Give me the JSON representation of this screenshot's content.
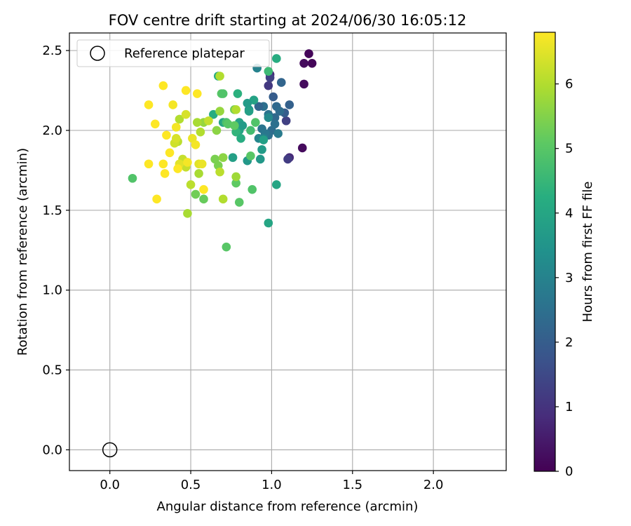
{
  "chart_data": {
    "type": "scatter",
    "title": "FOV centre drift starting at 2024/06/30 16:05:12",
    "xlabel": "Angular distance from reference (arcmin)",
    "ylabel": "Rotation from reference (arcmin)",
    "xlim": [
      -0.25,
      2.45
    ],
    "ylim": [
      -0.13,
      2.61
    ],
    "xticks": [
      "0.0",
      "0.5",
      "1.0",
      "1.5",
      "2.0"
    ],
    "yticks": [
      "0.0",
      "0.5",
      "1.0",
      "1.5",
      "2.0",
      "2.5"
    ],
    "grid": true,
    "legend": {
      "placement": "top-left",
      "entries": [
        "Reference platepar"
      ]
    },
    "reference_point": {
      "x": 0.0,
      "y": 0.0,
      "marker": "open-circle"
    },
    "colorbar": {
      "label": "Hours from first FF file",
      "range": [
        0,
        6.8
      ],
      "ticks": [
        "0",
        "1",
        "2",
        "3",
        "4",
        "5",
        "6"
      ],
      "colormap": "viridis"
    },
    "points": [
      {
        "x": 1.23,
        "y": 2.48,
        "h": 0.1
      },
      {
        "x": 1.25,
        "y": 2.42,
        "h": 0.1
      },
      {
        "x": 1.2,
        "y": 2.42,
        "h": 0.2
      },
      {
        "x": 1.2,
        "y": 2.29,
        "h": 0.2
      },
      {
        "x": 1.19,
        "y": 1.89,
        "h": 0.2
      },
      {
        "x": 1.11,
        "y": 1.83,
        "h": 0.8
      },
      {
        "x": 1.1,
        "y": 1.82,
        "h": 1.2
      },
      {
        "x": 0.99,
        "y": 2.35,
        "h": 0.8
      },
      {
        "x": 0.98,
        "y": 2.28,
        "h": 1.1
      },
      {
        "x": 0.99,
        "y": 2.33,
        "h": 1.3
      },
      {
        "x": 1.09,
        "y": 2.06,
        "h": 1.3
      },
      {
        "x": 1.01,
        "y": 2.21,
        "h": 2.0
      },
      {
        "x": 1.06,
        "y": 2.3,
        "h": 2.2
      },
      {
        "x": 1.11,
        "y": 2.16,
        "h": 2.1
      },
      {
        "x": 1.08,
        "y": 2.11,
        "h": 2.0
      },
      {
        "x": 1.03,
        "y": 2.15,
        "h": 2.3
      },
      {
        "x": 1.05,
        "y": 2.12,
        "h": 2.4
      },
      {
        "x": 1.02,
        "y": 2.08,
        "h": 2.3
      },
      {
        "x": 0.98,
        "y": 2.1,
        "h": 2.6
      },
      {
        "x": 0.95,
        "y": 2.15,
        "h": 2.5
      },
      {
        "x": 0.92,
        "y": 2.15,
        "h": 2.2
      },
      {
        "x": 1.0,
        "y": 2.0,
        "h": 2.4
      },
      {
        "x": 0.98,
        "y": 1.97,
        "h": 2.5
      },
      {
        "x": 1.04,
        "y": 1.98,
        "h": 2.8
      },
      {
        "x": 0.94,
        "y": 2.01,
        "h": 2.6
      },
      {
        "x": 0.96,
        "y": 1.98,
        "h": 2.7
      },
      {
        "x": 1.02,
        "y": 2.04,
        "h": 2.5
      },
      {
        "x": 0.95,
        "y": 1.95,
        "h": 3.0
      },
      {
        "x": 0.92,
        "y": 1.95,
        "h": 3.1
      },
      {
        "x": 0.91,
        "y": 2.39,
        "h": 3.0
      },
      {
        "x": 0.98,
        "y": 2.08,
        "h": 3.2
      },
      {
        "x": 0.94,
        "y": 1.88,
        "h": 3.7
      },
      {
        "x": 0.95,
        "y": 1.94,
        "h": 3.8
      },
      {
        "x": 0.93,
        "y": 1.82,
        "h": 3.6
      },
      {
        "x": 0.86,
        "y": 2.13,
        "h": 3.4
      },
      {
        "x": 0.85,
        "y": 1.81,
        "h": 3.6
      },
      {
        "x": 0.89,
        "y": 2.19,
        "h": 3.9
      },
      {
        "x": 0.85,
        "y": 2.17,
        "h": 3.7
      },
      {
        "x": 0.86,
        "y": 2.12,
        "h": 3.8
      },
      {
        "x": 0.8,
        "y": 2.05,
        "h": 3.9
      },
      {
        "x": 0.8,
        "y": 2.0,
        "h": 4.0
      },
      {
        "x": 0.82,
        "y": 2.03,
        "h": 3.7
      },
      {
        "x": 0.78,
        "y": 1.99,
        "h": 4.4
      },
      {
        "x": 0.76,
        "y": 1.83,
        "h": 3.8
      },
      {
        "x": 0.7,
        "y": 2.05,
        "h": 4.0
      },
      {
        "x": 0.64,
        "y": 2.1,
        "h": 4.2
      },
      {
        "x": 0.67,
        "y": 2.34,
        "h": 4.1
      },
      {
        "x": 0.79,
        "y": 2.23,
        "h": 4.3
      },
      {
        "x": 0.81,
        "y": 1.95,
        "h": 4.2
      },
      {
        "x": 0.87,
        "y": 2.0,
        "h": 4.7
      },
      {
        "x": 0.9,
        "y": 2.05,
        "h": 4.9
      },
      {
        "x": 0.98,
        "y": 2.37,
        "h": 4.6
      },
      {
        "x": 1.03,
        "y": 2.45,
        "h": 4.2
      },
      {
        "x": 1.03,
        "y": 1.66,
        "h": 4.0
      },
      {
        "x": 0.98,
        "y": 1.42,
        "h": 4.0
      },
      {
        "x": 0.69,
        "y": 2.23,
        "h": 5.0
      },
      {
        "x": 0.7,
        "y": 2.23,
        "h": 4.9
      },
      {
        "x": 0.72,
        "y": 2.05,
        "h": 4.8
      },
      {
        "x": 0.73,
        "y": 2.04,
        "h": 5.0
      },
      {
        "x": 0.77,
        "y": 2.13,
        "h": 5.3
      },
      {
        "x": 0.77,
        "y": 2.03,
        "h": 5.1
      },
      {
        "x": 0.87,
        "y": 1.84,
        "h": 5.0
      },
      {
        "x": 0.88,
        "y": 1.63,
        "h": 4.9
      },
      {
        "x": 0.8,
        "y": 1.55,
        "h": 5.0
      },
      {
        "x": 0.78,
        "y": 1.67,
        "h": 5.1
      },
      {
        "x": 0.72,
        "y": 1.27,
        "h": 5.0
      },
      {
        "x": 0.58,
        "y": 1.57,
        "h": 5.2
      },
      {
        "x": 0.53,
        "y": 1.6,
        "h": 5.3
      },
      {
        "x": 0.65,
        "y": 1.82,
        "h": 5.4
      },
      {
        "x": 0.67,
        "y": 1.78,
        "h": 5.4
      },
      {
        "x": 0.7,
        "y": 1.83,
        "h": 5.6
      },
      {
        "x": 0.66,
        "y": 2.0,
        "h": 5.6
      },
      {
        "x": 0.58,
        "y": 2.05,
        "h": 5.7
      },
      {
        "x": 0.68,
        "y": 2.12,
        "h": 5.7
      },
      {
        "x": 0.68,
        "y": 2.34,
        "h": 6.0
      },
      {
        "x": 0.54,
        "y": 2.05,
        "h": 5.9
      },
      {
        "x": 0.56,
        "y": 1.99,
        "h": 6.0
      },
      {
        "x": 0.55,
        "y": 1.73,
        "h": 5.9
      },
      {
        "x": 0.5,
        "y": 1.66,
        "h": 6.1
      },
      {
        "x": 0.48,
        "y": 1.48,
        "h": 5.9
      },
      {
        "x": 0.7,
        "y": 1.57,
        "h": 6.0
      },
      {
        "x": 0.68,
        "y": 1.74,
        "h": 6.1
      },
      {
        "x": 0.78,
        "y": 2.13,
        "h": 6.0
      },
      {
        "x": 0.78,
        "y": 1.71,
        "h": 5.8
      },
      {
        "x": 0.61,
        "y": 2.06,
        "h": 6.2
      },
      {
        "x": 0.43,
        "y": 2.07,
        "h": 6.0
      },
      {
        "x": 0.42,
        "y": 1.93,
        "h": 6.1
      },
      {
        "x": 0.4,
        "y": 1.92,
        "h": 6.3
      },
      {
        "x": 0.47,
        "y": 1.77,
        "h": 6.2
      },
      {
        "x": 0.45,
        "y": 1.82,
        "h": 6.2
      },
      {
        "x": 0.14,
        "y": 1.7,
        "h": 4.9
      },
      {
        "x": 0.41,
        "y": 1.95,
        "h": 6.4
      },
      {
        "x": 0.47,
        "y": 2.1,
        "h": 6.4
      },
      {
        "x": 0.43,
        "y": 1.79,
        "h": 6.5
      },
      {
        "x": 0.55,
        "y": 1.79,
        "h": 6.5
      },
      {
        "x": 0.57,
        "y": 1.79,
        "h": 6.6
      },
      {
        "x": 0.51,
        "y": 1.95,
        "h": 6.6
      },
      {
        "x": 0.53,
        "y": 1.91,
        "h": 6.7
      },
      {
        "x": 0.48,
        "y": 1.8,
        "h": 6.7
      },
      {
        "x": 0.42,
        "y": 1.76,
        "h": 6.8
      },
      {
        "x": 0.37,
        "y": 1.86,
        "h": 6.8
      },
      {
        "x": 0.35,
        "y": 1.97,
        "h": 6.8
      },
      {
        "x": 0.34,
        "y": 1.73,
        "h": 6.8
      },
      {
        "x": 0.33,
        "y": 1.79,
        "h": 6.8
      },
      {
        "x": 0.29,
        "y": 1.57,
        "h": 6.8
      },
      {
        "x": 0.24,
        "y": 1.79,
        "h": 6.8
      },
      {
        "x": 0.28,
        "y": 2.04,
        "h": 6.8
      },
      {
        "x": 0.39,
        "y": 2.16,
        "h": 6.7
      },
      {
        "x": 0.41,
        "y": 2.02,
        "h": 6.7
      },
      {
        "x": 0.24,
        "y": 2.16,
        "h": 6.8
      },
      {
        "x": 0.33,
        "y": 2.28,
        "h": 6.8
      },
      {
        "x": 0.47,
        "y": 2.25,
        "h": 6.8
      },
      {
        "x": 0.54,
        "y": 2.23,
        "h": 6.8
      },
      {
        "x": 0.58,
        "y": 1.63,
        "h": 6.8
      }
    ]
  }
}
